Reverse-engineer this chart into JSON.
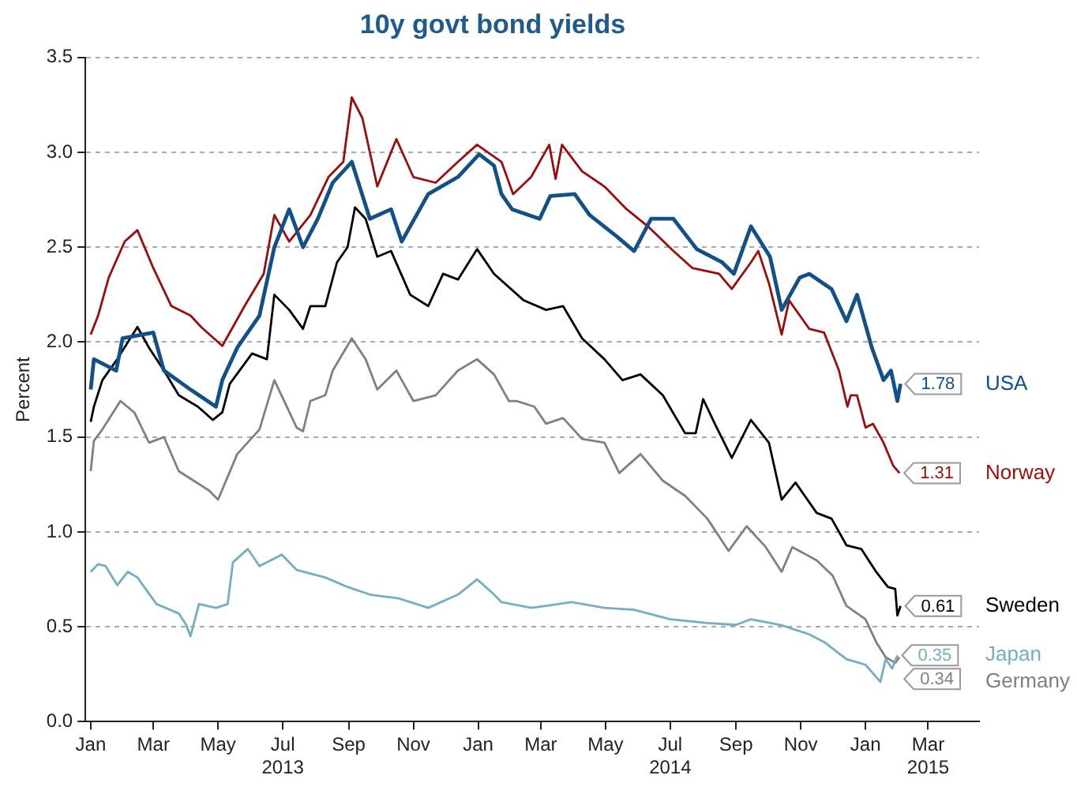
{
  "chart_data": {
    "type": "line",
    "title": "10y govt bond yields",
    "ylabel": "Percent",
    "xlim": [
      "2012-12-27",
      "2015-04-18"
    ],
    "xticks": [
      {
        "value": "2013-01-01",
        "label": "Jan"
      },
      {
        "value": "2013-03-01",
        "label": "Mar"
      },
      {
        "value": "2013-05-01",
        "label": "May"
      },
      {
        "value": "2013-07-01",
        "label": "Jul\n2013"
      },
      {
        "value": "2013-09-01",
        "label": "Sep"
      },
      {
        "value": "2013-11-01",
        "label": "Nov"
      },
      {
        "value": "2014-01-01",
        "label": "Jan"
      },
      {
        "value": "2014-03-01",
        "label": "Mar"
      },
      {
        "value": "2014-05-01",
        "label": "May"
      },
      {
        "value": "2014-07-01",
        "label": "Jul\n2014"
      },
      {
        "value": "2014-09-01",
        "label": "Sep"
      },
      {
        "value": "2014-11-01",
        "label": "Nov"
      },
      {
        "value": "2015-01-01",
        "label": "Jan"
      },
      {
        "value": "2015-03-01",
        "label": "Mar\n2015"
      }
    ],
    "ylim": [
      0,
      3.5
    ],
    "yticks": [
      {
        "value": 0,
        "label": "0.0"
      },
      {
        "value": 0.5,
        "label": "0.5"
      },
      {
        "value": 1,
        "label": "1.0"
      },
      {
        "value": 1.5,
        "label": "1.5"
      },
      {
        "value": 2,
        "label": "2.0"
      },
      {
        "value": 2.5,
        "label": "2.5"
      },
      {
        "value": 3,
        "label": "3.0"
      },
      {
        "value": 3.5,
        "label": "3.5"
      }
    ],
    "grid": "y",
    "legend": false,
    "marker": "none",
    "line_style": "solid",
    "series": [
      {
        "name": "USA",
        "color": "#12508a",
        "x": [
          "2013-01-01",
          "2013-01-04",
          "2013-01-25",
          "2013-01-31",
          "2013-03-01",
          "2013-03-11",
          "2013-04-05",
          "2013-04-29",
          "2013-05-05",
          "2013-05-19",
          "2013-06-09",
          "2013-06-23",
          "2013-07-07",
          "2013-07-20",
          "2013-08-03",
          "2013-08-17",
          "2013-09-04",
          "2013-09-21",
          "2013-10-11",
          "2013-10-21",
          "2013-11-15",
          "2013-12-13",
          "2014-01-02",
          "2014-01-16",
          "2014-01-23",
          "2014-02-02",
          "2014-02-28",
          "2014-03-10",
          "2014-04-02",
          "2014-04-16",
          "2014-05-11",
          "2014-05-28",
          "2014-06-13",
          "2014-07-04",
          "2014-07-26",
          "2014-08-19",
          "2014-08-30",
          "2014-09-15",
          "2014-10-03",
          "2014-10-14",
          "2014-10-31",
          "2014-11-09",
          "2014-11-30",
          "2014-12-14",
          "2014-12-24",
          "2015-01-07",
          "2015-01-18",
          "2015-01-25",
          "2015-01-31",
          "2015-02-03"
        ],
        "values": [
          1.75,
          1.91,
          1.85,
          2.02,
          2.05,
          1.85,
          1.75,
          1.66,
          1.8,
          1.97,
          2.14,
          2.5,
          2.7,
          2.5,
          2.65,
          2.84,
          2.95,
          2.65,
          2.7,
          2.53,
          2.78,
          2.87,
          2.99,
          2.93,
          2.78,
          2.7,
          2.65,
          2.77,
          2.78,
          2.67,
          2.56,
          2.48,
          2.65,
          2.65,
          2.49,
          2.42,
          2.36,
          2.61,
          2.45,
          2.17,
          2.34,
          2.36,
          2.28,
          2.11,
          2.25,
          1.97,
          1.8,
          1.85,
          1.69,
          1.78
        ],
        "value_labels": [
          null,
          null,
          null,
          null,
          null,
          null,
          null,
          null,
          null,
          null,
          null,
          null,
          null,
          null,
          null,
          null,
          null,
          null,
          null,
          null,
          null,
          null,
          null,
          null,
          null,
          null,
          null,
          null,
          null,
          null,
          null,
          null,
          null,
          null,
          null,
          null,
          null,
          null,
          null,
          null,
          null,
          null,
          null,
          null,
          null,
          null,
          null,
          null,
          null,
          "1.78"
        ]
      },
      {
        "name": "Norway",
        "color": "#9b0d0d",
        "x": [
          "2013-01-01",
          "2013-01-08",
          "2013-01-18",
          "2013-02-02",
          "2013-02-14",
          "2013-03-01",
          "2013-03-18",
          "2013-04-05",
          "2013-04-15",
          "2013-05-05",
          "2013-05-26",
          "2013-06-13",
          "2013-06-23",
          "2013-07-07",
          "2013-07-27",
          "2013-08-13",
          "2013-08-27",
          "2013-09-04",
          "2013-09-14",
          "2013-09-28",
          "2013-10-16",
          "2013-11-01",
          "2013-11-22",
          "2013-12-13",
          "2013-12-31",
          "2014-01-23",
          "2014-02-03",
          "2014-02-20",
          "2014-03-09",
          "2014-03-15",
          "2014-03-21",
          "2014-04-09",
          "2014-04-30",
          "2014-05-21",
          "2014-06-10",
          "2014-07-04",
          "2014-07-22",
          "2014-08-16",
          "2014-08-28",
          "2014-09-15",
          "2014-09-22",
          "2014-10-02",
          "2014-10-14",
          "2014-10-21",
          "2014-11-09",
          "2014-11-23",
          "2014-12-07",
          "2014-12-15",
          "2014-12-18",
          "2014-12-24",
          "2015-01-01",
          "2015-01-08",
          "2015-01-18",
          "2015-01-27",
          "2015-02-02"
        ],
        "values": [
          2.04,
          2.14,
          2.34,
          2.53,
          2.59,
          2.39,
          2.19,
          2.14,
          2.08,
          1.98,
          2.19,
          2.36,
          2.67,
          2.53,
          2.67,
          2.87,
          2.95,
          3.29,
          3.18,
          2.82,
          3.07,
          2.87,
          2.84,
          2.95,
          3.04,
          2.95,
          2.78,
          2.87,
          3.04,
          2.86,
          3.04,
          2.9,
          2.82,
          2.7,
          2.61,
          2.48,
          2.39,
          2.36,
          2.28,
          2.42,
          2.48,
          2.31,
          2.04,
          2.22,
          2.07,
          2.05,
          1.85,
          1.66,
          1.72,
          1.72,
          1.55,
          1.57,
          1.47,
          1.35,
          1.31
        ],
        "value_labels": [
          null,
          null,
          null,
          null,
          null,
          null,
          null,
          null,
          null,
          null,
          null,
          null,
          null,
          null,
          null,
          null,
          null,
          null,
          null,
          null,
          null,
          null,
          null,
          null,
          null,
          null,
          null,
          null,
          null,
          null,
          null,
          null,
          null,
          null,
          null,
          null,
          null,
          null,
          null,
          null,
          null,
          null,
          null,
          null,
          null,
          null,
          null,
          null,
          null,
          null,
          null,
          null,
          null,
          null,
          "1.31"
        ]
      },
      {
        "name": "Sweden",
        "color": "#000000",
        "x": [
          "2013-01-01",
          "2013-01-04",
          "2013-01-12",
          "2013-01-26",
          "2013-02-14",
          "2013-02-25",
          "2013-03-11",
          "2013-03-25",
          "2013-04-12",
          "2013-04-26",
          "2013-05-05",
          "2013-05-12",
          "2013-06-02",
          "2013-06-16",
          "2013-06-23",
          "2013-07-07",
          "2013-07-20",
          "2013-07-27",
          "2013-08-10",
          "2013-08-21",
          "2013-08-31",
          "2013-09-07",
          "2013-09-17",
          "2013-09-28",
          "2013-10-11",
          "2013-10-29",
          "2013-11-15",
          "2013-11-29",
          "2013-12-13",
          "2013-12-31",
          "2014-01-16",
          "2014-02-13",
          "2014-03-06",
          "2014-03-22",
          "2014-04-09",
          "2014-04-30",
          "2014-05-17",
          "2014-06-03",
          "2014-06-24",
          "2014-07-15",
          "2014-07-25",
          "2014-08-01",
          "2014-08-12",
          "2014-08-28",
          "2014-09-15",
          "2014-10-02",
          "2014-10-14",
          "2014-10-27",
          "2014-11-16",
          "2014-11-30",
          "2014-12-14",
          "2014-12-28",
          "2015-01-11",
          "2015-01-22",
          "2015-01-29",
          "2015-01-31",
          "2015-02-03"
        ],
        "values": [
          1.58,
          1.66,
          1.8,
          1.91,
          2.08,
          1.97,
          1.85,
          1.72,
          1.66,
          1.59,
          1.63,
          1.78,
          1.94,
          1.91,
          2.25,
          2.17,
          2.07,
          2.19,
          2.19,
          2.42,
          2.5,
          2.71,
          2.65,
          2.45,
          2.48,
          2.25,
          2.19,
          2.36,
          2.33,
          2.49,
          2.36,
          2.22,
          2.17,
          2.19,
          2.02,
          1.91,
          1.8,
          1.83,
          1.72,
          1.52,
          1.52,
          1.7,
          1.57,
          1.39,
          1.59,
          1.47,
          1.17,
          1.26,
          1.1,
          1.07,
          0.93,
          0.91,
          0.79,
          0.71,
          0.7,
          0.56,
          0.61
        ],
        "value_labels": [
          null,
          null,
          null,
          null,
          null,
          null,
          null,
          null,
          null,
          null,
          null,
          null,
          null,
          null,
          null,
          null,
          null,
          null,
          null,
          null,
          null,
          null,
          null,
          null,
          null,
          null,
          null,
          null,
          null,
          null,
          null,
          null,
          null,
          null,
          null,
          null,
          null,
          null,
          null,
          null,
          null,
          null,
          null,
          null,
          null,
          null,
          null,
          null,
          null,
          null,
          null,
          null,
          null,
          null,
          null,
          null,
          "0.61"
        ]
      },
      {
        "name": "Japan",
        "color": "#74adc6",
        "x": [
          "2013-01-01",
          "2013-01-08",
          "2013-01-15",
          "2013-01-26",
          "2013-02-05",
          "2013-02-14",
          "2013-03-04",
          "2013-03-25",
          "2013-04-01",
          "2013-04-05",
          "2013-04-13",
          "2013-04-29",
          "2013-05-10",
          "2013-05-15",
          "2013-05-29",
          "2013-06-09",
          "2013-06-30",
          "2013-07-14",
          "2013-08-10",
          "2013-08-31",
          "2013-09-21",
          "2013-10-18",
          "2013-11-15",
          "2013-12-13",
          "2013-12-31",
          "2014-01-16",
          "2014-01-23",
          "2014-02-20",
          "2014-03-06",
          "2014-03-30",
          "2014-04-30",
          "2014-05-28",
          "2014-07-01",
          "2014-08-05",
          "2014-09-01",
          "2014-09-15",
          "2014-10-13",
          "2014-11-09",
          "2014-11-23",
          "2014-12-14",
          "2015-01-01",
          "2015-01-15",
          "2015-01-20",
          "2015-01-26",
          "2015-01-31"
        ],
        "values": [
          0.79,
          0.83,
          0.82,
          0.72,
          0.79,
          0.76,
          0.62,
          0.57,
          0.51,
          0.45,
          0.62,
          0.6,
          0.62,
          0.84,
          0.91,
          0.82,
          0.88,
          0.8,
          0.76,
          0.71,
          0.67,
          0.65,
          0.6,
          0.67,
          0.75,
          0.67,
          0.63,
          0.6,
          0.61,
          0.63,
          0.6,
          0.59,
          0.54,
          0.52,
          0.51,
          0.54,
          0.51,
          0.46,
          0.42,
          0.33,
          0.3,
          0.21,
          0.33,
          0.28,
          0.35
        ],
        "value_labels": [
          null,
          null,
          null,
          null,
          null,
          null,
          null,
          null,
          null,
          null,
          null,
          null,
          null,
          null,
          null,
          null,
          null,
          null,
          null,
          null,
          null,
          null,
          null,
          null,
          null,
          null,
          null,
          null,
          null,
          null,
          null,
          null,
          null,
          null,
          null,
          null,
          null,
          null,
          null,
          null,
          null,
          null,
          null,
          null,
          "0.35"
        ]
      },
      {
        "name": "Germany",
        "color": "#808080",
        "x": [
          "2013-01-01",
          "2013-01-04",
          "2013-01-12",
          "2013-01-29",
          "2013-02-11",
          "2013-02-25",
          "2013-03-11",
          "2013-03-25",
          "2013-04-08",
          "2013-04-22",
          "2013-05-01",
          "2013-05-19",
          "2013-06-09",
          "2013-06-23",
          "2013-07-14",
          "2013-07-20",
          "2013-07-27",
          "2013-08-10",
          "2013-08-17",
          "2013-09-04",
          "2013-09-17",
          "2013-09-28",
          "2013-10-16",
          "2013-11-01",
          "2013-11-22",
          "2013-12-13",
          "2013-12-31",
          "2014-01-16",
          "2014-01-30",
          "2014-02-06",
          "2014-02-23",
          "2014-03-06",
          "2014-03-22",
          "2014-04-09",
          "2014-04-30",
          "2014-05-14",
          "2014-06-03",
          "2014-06-24",
          "2014-07-15",
          "2014-08-05",
          "2014-08-25",
          "2014-09-11",
          "2014-09-29",
          "2014-10-14",
          "2014-10-24",
          "2014-11-16",
          "2014-12-01",
          "2014-12-14",
          "2015-01-01",
          "2015-01-11",
          "2015-01-20",
          "2015-01-29",
          "2015-02-02"
        ],
        "values": [
          1.32,
          1.48,
          1.54,
          1.69,
          1.63,
          1.47,
          1.5,
          1.32,
          1.27,
          1.22,
          1.17,
          1.41,
          1.54,
          1.8,
          1.55,
          1.53,
          1.69,
          1.72,
          1.85,
          2.02,
          1.91,
          1.75,
          1.85,
          1.69,
          1.72,
          1.85,
          1.91,
          1.83,
          1.69,
          1.69,
          1.66,
          1.57,
          1.6,
          1.49,
          1.47,
          1.31,
          1.41,
          1.27,
          1.19,
          1.07,
          0.9,
          1.03,
          0.92,
          0.79,
          0.92,
          0.85,
          0.77,
          0.61,
          0.54,
          0.42,
          0.34,
          0.31,
          0.34
        ],
        "value_labels": [
          null,
          null,
          null,
          null,
          null,
          null,
          null,
          null,
          null,
          null,
          null,
          null,
          null,
          null,
          null,
          null,
          null,
          null,
          null,
          null,
          null,
          null,
          null,
          null,
          null,
          null,
          null,
          null,
          null,
          null,
          null,
          null,
          null,
          null,
          null,
          null,
          null,
          null,
          null,
          null,
          null,
          null,
          null,
          null,
          null,
          null,
          null,
          null,
          null,
          null,
          null,
          null,
          "0.34"
        ]
      }
    ]
  }
}
